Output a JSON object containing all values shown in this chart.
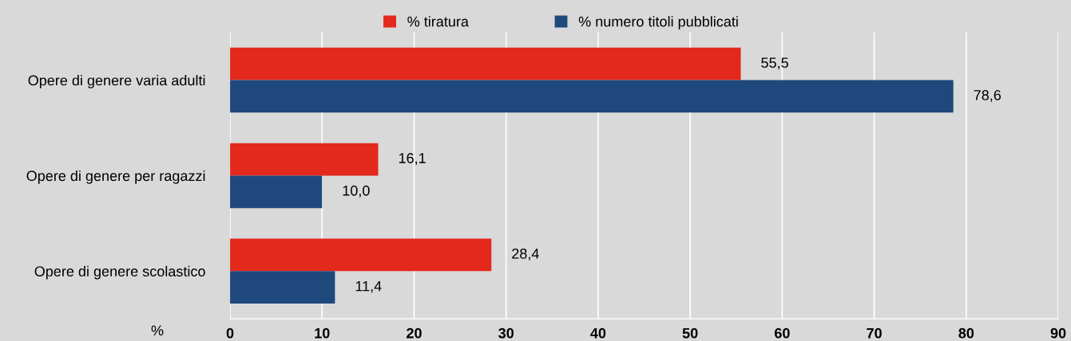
{
  "chart_data": {
    "type": "bar",
    "orientation": "horizontal",
    "xlabel": "%",
    "categories": [
      "Opere di genere varia adulti",
      "Opere di genere per ragazzi",
      "Opere di genere scolastico"
    ],
    "series": [
      {
        "name": "% tiratura",
        "color": "#e3281c",
        "values": [
          55.5,
          16.1,
          28.4
        ],
        "value_labels": [
          "55,5",
          "16,1",
          "28,4"
        ]
      },
      {
        "name": "% numero titoli pubblicati",
        "color": "#1f497d",
        "values": [
          78.6,
          10.0,
          11.4
        ],
        "value_labels": [
          "78,6",
          "10,0",
          "11,4"
        ]
      }
    ],
    "xlim": [
      0,
      90
    ],
    "xticks": [
      0,
      10,
      20,
      30,
      40,
      50,
      60,
      70,
      80,
      90
    ],
    "grid": "x",
    "legend": "top"
  }
}
